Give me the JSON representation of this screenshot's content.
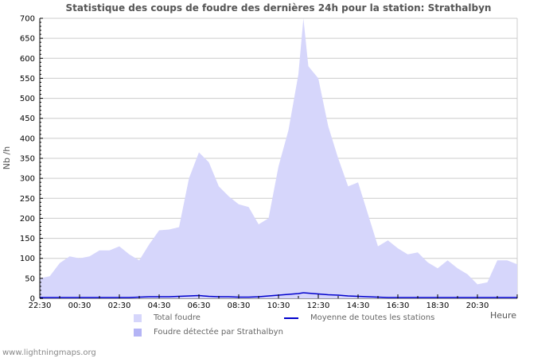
{
  "title": "Statistique des coups de foudre des dernières 24h pour la station: Strathalbyn",
  "y_axis_label": "Nb /h",
  "x_axis_label": "Heure",
  "footer": "www.lightningmaps.org",
  "legend": {
    "total": "Total foudre",
    "detected": "Foudre détectée par Strathalbyn",
    "average": "Moyenne de toutes les stations"
  },
  "colors": {
    "total": "#d6d6fb",
    "detected": "#b4b4f5",
    "average": "#0000cc",
    "grid": "#cccccc"
  },
  "chart_data": {
    "type": "area",
    "title": "Statistique des coups de foudre des dernières 24h pour la station: Strathalbyn",
    "xlabel": "Heure",
    "ylabel": "Nb /h",
    "ylim": [
      0,
      700
    ],
    "yticks": [
      0,
      50,
      100,
      150,
      200,
      250,
      300,
      350,
      400,
      450,
      500,
      550,
      600,
      650,
      700
    ],
    "xtick_labels": [
      "22:30",
      "00:30",
      "02:30",
      "04:30",
      "06:30",
      "08:30",
      "10:30",
      "12:30",
      "14:30",
      "16:30",
      "18:30",
      "20:30"
    ],
    "grid": true,
    "legend_position": "bottom",
    "x": [
      "22:30",
      "23:00",
      "23:30",
      "00:00",
      "00:30",
      "01:00",
      "01:30",
      "02:00",
      "02:30",
      "03:00",
      "03:30",
      "04:00",
      "04:30",
      "05:00",
      "05:30",
      "06:00",
      "06:30",
      "07:00",
      "07:30",
      "08:00",
      "08:30",
      "09:00",
      "09:30",
      "10:00",
      "10:30",
      "11:00",
      "11:30",
      "11:45",
      "12:00",
      "12:30",
      "13:00",
      "13:30",
      "14:00",
      "14:30",
      "15:00",
      "15:30",
      "16:00",
      "16:30",
      "17:00",
      "17:30",
      "18:00",
      "18:30",
      "19:00",
      "19:30",
      "20:00",
      "20:30",
      "21:00",
      "21:30",
      "22:00",
      "22:30"
    ],
    "series": [
      {
        "name": "Total foudre",
        "values": [
          50,
          55,
          88,
          105,
          100,
          105,
          120,
          120,
          130,
          110,
          95,
          135,
          170,
          172,
          178,
          300,
          365,
          340,
          280,
          255,
          235,
          228,
          185,
          200,
          330,
          420,
          560,
          700,
          580,
          550,
          430,
          350,
          280,
          290,
          210,
          130,
          145,
          125,
          110,
          115,
          90,
          75,
          95,
          75,
          60,
          35,
          40,
          95,
          95,
          85
        ]
      },
      {
        "name": "Foudre détectée par Strathalbyn",
        "values": [
          0,
          0,
          0,
          0,
          0,
          0,
          0,
          0,
          0,
          0,
          0,
          0,
          0,
          0,
          0,
          0,
          0,
          0,
          0,
          0,
          0,
          0,
          0,
          0,
          0,
          0,
          0,
          0,
          0,
          0,
          0,
          0,
          0,
          0,
          0,
          0,
          0,
          0,
          0,
          0,
          0,
          0,
          0,
          0,
          0,
          0,
          0,
          0,
          0,
          0
        ]
      },
      {
        "name": "Moyenne de toutes les stations",
        "values": [
          2,
          2,
          2,
          2,
          2,
          2,
          2,
          2,
          2,
          2,
          3,
          4,
          4,
          4,
          5,
          6,
          7,
          5,
          4,
          4,
          3,
          3,
          4,
          6,
          8,
          10,
          12,
          14,
          13,
          11,
          9,
          8,
          6,
          5,
          4,
          3,
          2,
          2,
          2,
          2,
          2,
          2,
          2,
          2,
          2,
          2,
          2,
          2,
          2,
          2
        ]
      }
    ]
  }
}
